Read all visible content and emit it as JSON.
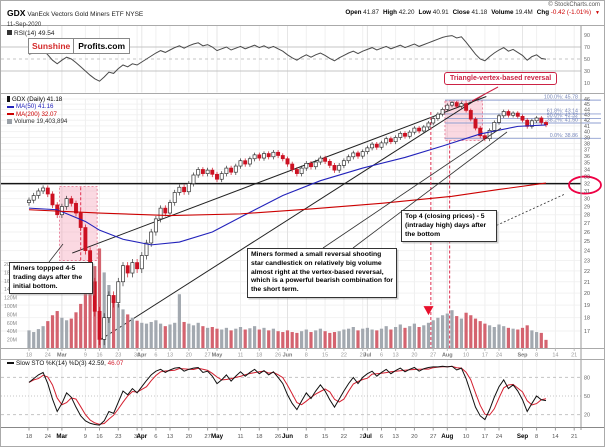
{
  "header": {
    "symbol": "GDX",
    "title": "VanEck Vectors Gold Miners ETF NYSE",
    "date": "11-Sep-2020",
    "credit": "© StockCharts.com",
    "quote": [
      {
        "label": "Open",
        "value": "41.87"
      },
      {
        "label": "High",
        "value": "42.20"
      },
      {
        "label": "Low",
        "value": "40.91"
      },
      {
        "label": "Close",
        "value": "41.18"
      },
      {
        "label": "Volume",
        "value": "19.4M"
      },
      {
        "label": "Chg",
        "value": "-0.42 (-1.01%)",
        "direction": "down",
        "color": "#cc0000"
      }
    ]
  },
  "logo": {
    "left": "Sunshine",
    "right": "Profits.com",
    "left_color": "#d42a2a"
  },
  "legends": {
    "rsi": "RSI(14) 49.54",
    "price": [
      {
        "icon": "candle",
        "label": "GDX (Daily) 41.18",
        "color": "#000000"
      },
      {
        "icon": "line",
        "label": "MA(50) 41.16",
        "color": "#2222bb"
      },
      {
        "icon": "line",
        "label": "MA(200) 32.07",
        "color": "#cc0000"
      },
      {
        "icon": "bars",
        "label": "Volume 19,403,894",
        "color": "#333333"
      }
    ],
    "stoch_prefix": "Slow STO %K(14) %D(3) 42.59,",
    "stoch_d_value": "46.07"
  },
  "annotations": {
    "vertex_label": "Triangle-vertex-based reversal",
    "vertex_color": "#cc2244",
    "callout_left": "Miners toppped 4-5 trading days after the initial bottom.",
    "callout_mid": "Miners formed a small reversal shooting star candlestick on relatively big volume almost right at the vertex-based reversal, which is a powerful bearish combination for the short term.",
    "callout_right": "Top 4 (closing prices) - 5 (intraday high) days after the bottom"
  },
  "chart_data": [
    {
      "id": "rsi",
      "type": "line",
      "label": "RSI(14)",
      "last": 49.54,
      "ylim": [
        0,
        100
      ],
      "yticks": [
        90,
        70,
        50,
        30,
        10
      ],
      "hlines": [
        {
          "v": 70,
          "style": "solid"
        },
        {
          "v": 50,
          "style": "dash"
        },
        {
          "v": 30,
          "style": "solid"
        }
      ],
      "values": [
        58,
        60,
        63,
        65,
        57,
        48,
        42,
        48,
        53,
        50,
        44,
        37,
        30,
        23,
        17,
        13,
        20,
        28,
        26,
        34,
        40,
        37,
        42,
        40,
        45,
        50,
        55,
        60,
        64,
        61,
        65,
        69,
        72,
        68,
        72,
        75,
        77,
        72,
        74,
        70,
        64,
        67,
        70,
        65,
        68,
        71,
        67,
        70,
        73,
        69,
        72,
        68,
        71,
        67,
        63,
        57,
        52,
        48,
        53,
        57,
        53,
        57,
        60,
        56,
        51,
        47,
        52,
        56,
        60,
        63,
        59,
        63,
        66,
        69,
        65,
        68,
        71,
        67,
        70,
        73,
        69,
        72,
        75,
        71,
        74,
        77,
        80,
        83,
        86,
        88,
        89,
        85,
        87,
        78,
        68,
        58,
        50,
        47,
        54,
        60,
        65,
        69,
        63,
        66,
        61,
        56,
        48,
        54,
        57,
        51,
        49.54
      ]
    },
    {
      "id": "price",
      "type": "candlestick",
      "title": "GDX (Daily)",
      "scale": "log",
      "ylim": [
        17,
        46
      ],
      "ytick_step": 1,
      "closes": [
        29.8,
        30.4,
        31,
        31.4,
        30.6,
        29.2,
        28,
        29,
        30,
        29.4,
        28.2,
        26.5,
        24,
        21,
        18.5,
        16.4,
        18,
        19.8,
        19.2,
        21,
        22.5,
        21.8,
        22.8,
        22.2,
        23.5,
        24.8,
        26,
        27.5,
        28.8,
        28.2,
        29.5,
        30.8,
        31.5,
        30.9,
        32,
        33.2,
        34,
        33.4,
        33.9,
        33.3,
        32.6,
        33.4,
        34.2,
        33.6,
        34.5,
        35.3,
        34.8,
        35.6,
        36.2,
        35.7,
        36.4,
        35.9,
        36.6,
        36.1,
        35.6,
        34.8,
        34,
        33.4,
        34.2,
        34.9,
        34.4,
        35.1,
        35.7,
        35.2,
        34.6,
        33.9,
        34.6,
        35.3,
        35.9,
        36.5,
        36,
        36.7,
        37.3,
        37.9,
        37.4,
        38.1,
        38.8,
        38.3,
        39,
        39.7,
        39.2,
        39.9,
        40.6,
        40.1,
        40.8,
        41.5,
        42.3,
        43.1,
        44,
        44.8,
        45.3,
        44.6,
        45.1,
        43.8,
        42.2,
        40.6,
        39.3,
        38.8,
        40.2,
        41.6,
        42.8,
        43.6,
        42.9,
        43.3,
        42.7,
        42,
        40.9,
        41.9,
        42.4,
        41.6,
        41.18
      ],
      "volumes_m": [
        42,
        38,
        45,
        52,
        64,
        78,
        88,
        72,
        66,
        70,
        85,
        105,
        130,
        160,
        195,
        237,
        180,
        150,
        120,
        105,
        92,
        80,
        72,
        65,
        60,
        58,
        62,
        66,
        58,
        52,
        56,
        60,
        128,
        62,
        58,
        54,
        60,
        52,
        48,
        50,
        46,
        44,
        48,
        42,
        46,
        50,
        44,
        47,
        52,
        44,
        48,
        42,
        46,
        40,
        38,
        42,
        38,
        36,
        40,
        44,
        38,
        42,
        46,
        40,
        36,
        38,
        40,
        44,
        46,
        50,
        42,
        46,
        48,
        44,
        42,
        46,
        52,
        44,
        50,
        56,
        48,
        52,
        58,
        50,
        54,
        60,
        66,
        72,
        78,
        82,
        90,
        76,
        70,
        84,
        78,
        70,
        64,
        58,
        54,
        50,
        56,
        52,
        48,
        46,
        44,
        48,
        54,
        42,
        38,
        36,
        19.4
      ],
      "volume_ticks_m": [
        200,
        180,
        160,
        140,
        120,
        100,
        80,
        60,
        40,
        20
      ],
      "ma50": [
        [
          0,
          28.8
        ],
        [
          6,
          28.6
        ],
        [
          12,
          27.2
        ],
        [
          15,
          26.2
        ],
        [
          20,
          25.2
        ],
        [
          26,
          24.6
        ],
        [
          32,
          24.9
        ],
        [
          39,
          26.0
        ],
        [
          46,
          28.0
        ],
        [
          54,
          30.4
        ],
        [
          62,
          32.4
        ],
        [
          71,
          34.2
        ],
        [
          80,
          35.8
        ],
        [
          88,
          37.6
        ],
        [
          96,
          39.6
        ],
        [
          104,
          40.9
        ],
        [
          110,
          41.16
        ]
      ],
      "ma200": [
        [
          0,
          28.6
        ],
        [
          15,
          28.2
        ],
        [
          30,
          27.9
        ],
        [
          45,
          28.1
        ],
        [
          60,
          28.7
        ],
        [
          75,
          29.4
        ],
        [
          90,
          30.3
        ],
        [
          100,
          31.2
        ],
        [
          110,
          32.07
        ]
      ],
      "ma50_color": "#2222bb",
      "ma200_color": "#cc0000",
      "fib_levels": [
        {
          "label": "100.0%",
          "value": 45.78
        },
        {
          "label": "61.8%",
          "value": 43.14
        },
        {
          "label": "50.0%",
          "value": 42.32
        },
        {
          "label": "38.2%",
          "value": 41.5
        },
        {
          "label": "0.0%",
          "value": 38.86
        }
      ],
      "support_level": 32.0,
      "trendlines": [
        [
          [
            15.3,
            16.4
          ],
          [
            97.0,
            47.0
          ]
        ],
        [
          [
            9.2,
            23.75
          ],
          [
            97.3,
            46.5
          ]
        ]
      ],
      "pink_boxes": [
        [
          6.5,
          23.0,
          14.5,
          31.6
        ],
        [
          88.5,
          38.5,
          96.5,
          45.6
        ]
      ],
      "red_vlines": [
        [
          11,
          31.5,
          23.0
        ],
        [
          85.5,
          43.5,
          15.8
        ],
        [
          89.5,
          38.5,
          15.8
        ]
      ],
      "red_arrow": {
        "i": 85,
        "price": 18.2
      },
      "ellipse_price": 31.8,
      "up_color": "#ffffff",
      "down_color": "#cc1122",
      "vol_up_color": "#a3a9b0",
      "vol_down_color": "#d4636f",
      "date_ticks": [
        [
          "18",
          0
        ],
        [
          "24",
          4
        ],
        [
          "Mar",
          7
        ],
        [
          "9",
          12
        ],
        [
          "16",
          15
        ],
        [
          "23",
          19
        ],
        [
          "30",
          23
        ],
        [
          "Apr",
          24
        ],
        [
          "6",
          27
        ],
        [
          "13",
          30
        ],
        [
          "20",
          34
        ],
        [
          "27",
          38
        ],
        [
          "May",
          40
        ],
        [
          "11",
          45
        ],
        [
          "18",
          49
        ],
        [
          "26",
          53
        ],
        [
          "Jun",
          55
        ],
        [
          "8",
          59
        ],
        [
          "15",
          63
        ],
        [
          "22",
          67
        ],
        [
          "29",
          71
        ],
        [
          "Jul",
          72
        ],
        [
          "6",
          75
        ],
        [
          "13",
          78
        ],
        [
          "20",
          82
        ],
        [
          "27",
          86
        ],
        [
          "Aug",
          89
        ],
        [
          "10",
          93
        ],
        [
          "17",
          97
        ],
        [
          "24",
          100
        ],
        [
          "Sep",
          105
        ],
        [
          "8",
          108
        ],
        [
          "14",
          112
        ],
        [
          "21",
          116
        ]
      ]
    },
    {
      "id": "stoch",
      "type": "line",
      "label": "Slow STO %K(14) %D(3)",
      "k_last": 42.59,
      "d_last": 46.07,
      "ylim": [
        0,
        100
      ],
      "yticks": [
        80,
        50,
        20
      ],
      "hlines": [
        {
          "v": 80,
          "style": "dash"
        },
        {
          "v": 50,
          "style": "dot"
        },
        {
          "v": 20,
          "style": "dash"
        }
      ],
      "k_color": "#111111",
      "d_color": "#d42030",
      "k_values": [
        72,
        78,
        84,
        88,
        70,
        45,
        25,
        38,
        55,
        48,
        32,
        18,
        10,
        6,
        4,
        3,
        10,
        25,
        22,
        40,
        58,
        52,
        62,
        55,
        65,
        75,
        84,
        90,
        93,
        88,
        92,
        95,
        96,
        90,
        93,
        95,
        96,
        88,
        90,
        82,
        70,
        76,
        84,
        74,
        82,
        89,
        82,
        88,
        93,
        86,
        91,
        84,
        89,
        80,
        70,
        52,
        38,
        28,
        42,
        55,
        46,
        58,
        68,
        58,
        44,
        32,
        45,
        58,
        70,
        80,
        70,
        80,
        86,
        90,
        82,
        88,
        93,
        86,
        91,
        95,
        89,
        93,
        96,
        90,
        94,
        96,
        97,
        97,
        98,
        97,
        98,
        92,
        95,
        78,
        55,
        32,
        18,
        12,
        28,
        48,
        65,
        76,
        62,
        68,
        58,
        44,
        25,
        38,
        50,
        44,
        42.59
      ]
    }
  ]
}
